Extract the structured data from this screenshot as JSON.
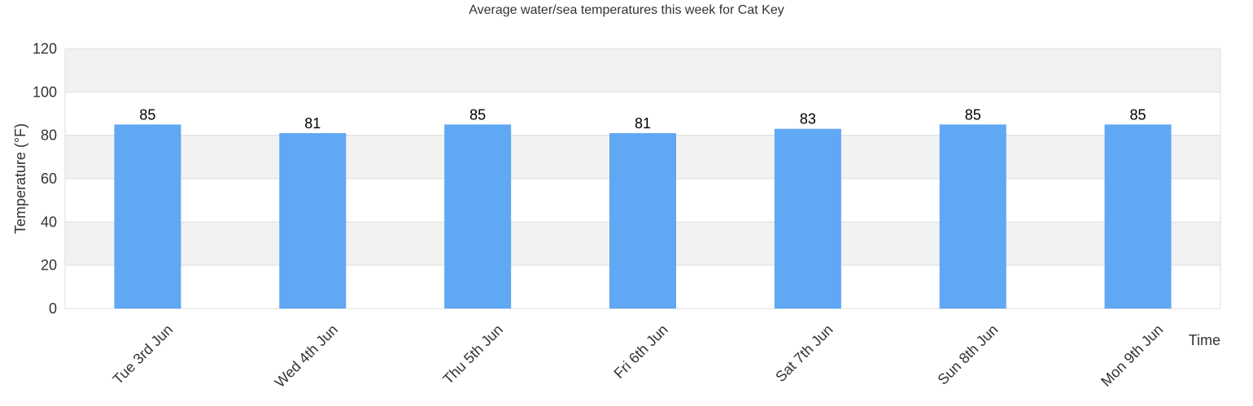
{
  "chart_data": {
    "type": "bar",
    "title": "Average water/sea temperatures this week for Cat Key",
    "xlabel": "Time",
    "ylabel": "Temperature (°F)",
    "categories": [
      "Tue 3rd Jun",
      "Wed 4th Jun",
      "Thu 5th Jun",
      "Fri 6th Jun",
      "Sat 7th Jun",
      "Sun 8th Jun",
      "Mon 9th Jun"
    ],
    "values": [
      85,
      81,
      85,
      81,
      83,
      85,
      85
    ],
    "ylim": [
      0,
      120
    ],
    "yticks": [
      "0",
      "20",
      "40",
      "60",
      "80",
      "100",
      "120"
    ],
    "grid": true,
    "bar_color": "#60a7f4",
    "band_color": "#f2f2f2"
  }
}
